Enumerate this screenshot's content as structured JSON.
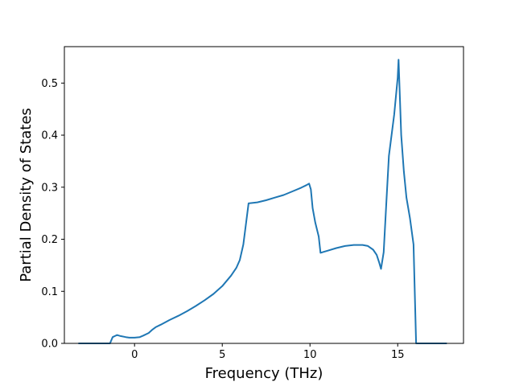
{
  "chart_data": {
    "type": "line",
    "title": "",
    "xlabel": "Frequency (THz)",
    "ylabel": "Partial Density of States",
    "xlim": [
      -4.0,
      18.75
    ],
    "ylim": [
      0.0,
      0.57
    ],
    "x_ticks": [
      0,
      5,
      10,
      15
    ],
    "y_ticks": [
      0.0,
      0.1,
      0.2,
      0.3,
      0.4,
      0.5
    ],
    "grid": false,
    "legend": "none",
    "series": [
      {
        "color": "#1f77b4",
        "x": [
          -3.2,
          -1.4,
          -1.25,
          -1.0,
          -0.8,
          -0.5,
          -0.3,
          0.0,
          0.3,
          0.5,
          0.8,
          1.0,
          1.2,
          1.5,
          2.0,
          2.5,
          3.0,
          3.5,
          4.0,
          4.5,
          5.0,
          5.5,
          5.8,
          6.0,
          6.2,
          6.35,
          6.5,
          7.0,
          7.5,
          8.0,
          8.5,
          9.0,
          9.5,
          9.8,
          9.95,
          10.05,
          10.15,
          10.3,
          10.5,
          10.6,
          10.8,
          11.0,
          11.5,
          12.0,
          12.5,
          13.0,
          13.3,
          13.6,
          13.8,
          13.95,
          14.05,
          14.2,
          14.35,
          14.5,
          14.8,
          15.0,
          15.05,
          15.2,
          15.35,
          15.5,
          15.7,
          15.9,
          16.05,
          16.2,
          17.8
        ],
        "y": [
          0.0,
          0.0,
          0.012,
          0.016,
          0.014,
          0.012,
          0.011,
          0.011,
          0.012,
          0.015,
          0.02,
          0.026,
          0.031,
          0.036,
          0.045,
          0.053,
          0.062,
          0.072,
          0.083,
          0.095,
          0.11,
          0.13,
          0.145,
          0.16,
          0.19,
          0.23,
          0.269,
          0.271,
          0.275,
          0.28,
          0.285,
          0.292,
          0.299,
          0.304,
          0.307,
          0.296,
          0.26,
          0.232,
          0.205,
          0.174,
          0.176,
          0.178,
          0.183,
          0.187,
          0.189,
          0.189,
          0.187,
          0.18,
          0.17,
          0.155,
          0.143,
          0.175,
          0.27,
          0.36,
          0.44,
          0.51,
          0.545,
          0.4,
          0.33,
          0.28,
          0.24,
          0.19,
          0.0,
          0.0,
          0.0
        ]
      }
    ]
  }
}
